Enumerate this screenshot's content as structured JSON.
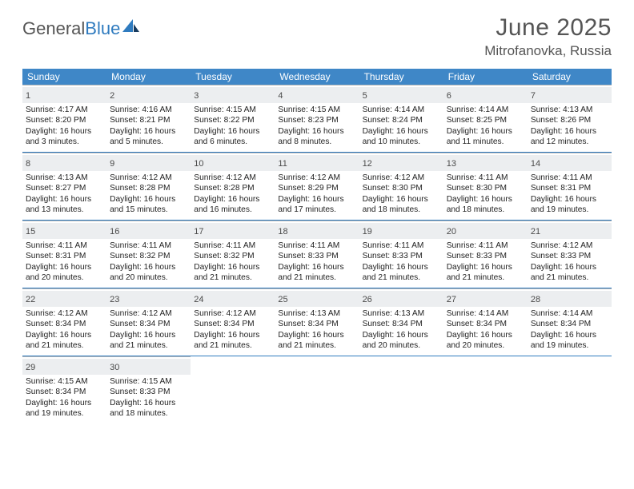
{
  "brand": {
    "name_gray": "General",
    "name_blue": "Blue"
  },
  "title": "June 2025",
  "location": "Mitrofanovka, Russia",
  "colors": {
    "header_bg": "#3f87c7",
    "divider": "#2f7bbf",
    "daynum_bg": "#eceef0",
    "cell_border": "#b9b9b9",
    "text_gray": "#555555"
  },
  "dow": [
    "Sunday",
    "Monday",
    "Tuesday",
    "Wednesday",
    "Thursday",
    "Friday",
    "Saturday"
  ],
  "weeks": [
    [
      {
        "day": "1",
        "sunrise": "Sunrise: 4:17 AM",
        "sunset": "Sunset: 8:20 PM",
        "d1": "Daylight: 16 hours",
        "d2": "and 3 minutes."
      },
      {
        "day": "2",
        "sunrise": "Sunrise: 4:16 AM",
        "sunset": "Sunset: 8:21 PM",
        "d1": "Daylight: 16 hours",
        "d2": "and 5 minutes."
      },
      {
        "day": "3",
        "sunrise": "Sunrise: 4:15 AM",
        "sunset": "Sunset: 8:22 PM",
        "d1": "Daylight: 16 hours",
        "d2": "and 6 minutes."
      },
      {
        "day": "4",
        "sunrise": "Sunrise: 4:15 AM",
        "sunset": "Sunset: 8:23 PM",
        "d1": "Daylight: 16 hours",
        "d2": "and 8 minutes."
      },
      {
        "day": "5",
        "sunrise": "Sunrise: 4:14 AM",
        "sunset": "Sunset: 8:24 PM",
        "d1": "Daylight: 16 hours",
        "d2": "and 10 minutes."
      },
      {
        "day": "6",
        "sunrise": "Sunrise: 4:14 AM",
        "sunset": "Sunset: 8:25 PM",
        "d1": "Daylight: 16 hours",
        "d2": "and 11 minutes."
      },
      {
        "day": "7",
        "sunrise": "Sunrise: 4:13 AM",
        "sunset": "Sunset: 8:26 PM",
        "d1": "Daylight: 16 hours",
        "d2": "and 12 minutes."
      }
    ],
    [
      {
        "day": "8",
        "sunrise": "Sunrise: 4:13 AM",
        "sunset": "Sunset: 8:27 PM",
        "d1": "Daylight: 16 hours",
        "d2": "and 13 minutes."
      },
      {
        "day": "9",
        "sunrise": "Sunrise: 4:12 AM",
        "sunset": "Sunset: 8:28 PM",
        "d1": "Daylight: 16 hours",
        "d2": "and 15 minutes."
      },
      {
        "day": "10",
        "sunrise": "Sunrise: 4:12 AM",
        "sunset": "Sunset: 8:28 PM",
        "d1": "Daylight: 16 hours",
        "d2": "and 16 minutes."
      },
      {
        "day": "11",
        "sunrise": "Sunrise: 4:12 AM",
        "sunset": "Sunset: 8:29 PM",
        "d1": "Daylight: 16 hours",
        "d2": "and 17 minutes."
      },
      {
        "day": "12",
        "sunrise": "Sunrise: 4:12 AM",
        "sunset": "Sunset: 8:30 PM",
        "d1": "Daylight: 16 hours",
        "d2": "and 18 minutes."
      },
      {
        "day": "13",
        "sunrise": "Sunrise: 4:11 AM",
        "sunset": "Sunset: 8:30 PM",
        "d1": "Daylight: 16 hours",
        "d2": "and 18 minutes."
      },
      {
        "day": "14",
        "sunrise": "Sunrise: 4:11 AM",
        "sunset": "Sunset: 8:31 PM",
        "d1": "Daylight: 16 hours",
        "d2": "and 19 minutes."
      }
    ],
    [
      {
        "day": "15",
        "sunrise": "Sunrise: 4:11 AM",
        "sunset": "Sunset: 8:31 PM",
        "d1": "Daylight: 16 hours",
        "d2": "and 20 minutes."
      },
      {
        "day": "16",
        "sunrise": "Sunrise: 4:11 AM",
        "sunset": "Sunset: 8:32 PM",
        "d1": "Daylight: 16 hours",
        "d2": "and 20 minutes."
      },
      {
        "day": "17",
        "sunrise": "Sunrise: 4:11 AM",
        "sunset": "Sunset: 8:32 PM",
        "d1": "Daylight: 16 hours",
        "d2": "and 21 minutes."
      },
      {
        "day": "18",
        "sunrise": "Sunrise: 4:11 AM",
        "sunset": "Sunset: 8:33 PM",
        "d1": "Daylight: 16 hours",
        "d2": "and 21 minutes."
      },
      {
        "day": "19",
        "sunrise": "Sunrise: 4:11 AM",
        "sunset": "Sunset: 8:33 PM",
        "d1": "Daylight: 16 hours",
        "d2": "and 21 minutes."
      },
      {
        "day": "20",
        "sunrise": "Sunrise: 4:11 AM",
        "sunset": "Sunset: 8:33 PM",
        "d1": "Daylight: 16 hours",
        "d2": "and 21 minutes."
      },
      {
        "day": "21",
        "sunrise": "Sunrise: 4:12 AM",
        "sunset": "Sunset: 8:33 PM",
        "d1": "Daylight: 16 hours",
        "d2": "and 21 minutes."
      }
    ],
    [
      {
        "day": "22",
        "sunrise": "Sunrise: 4:12 AM",
        "sunset": "Sunset: 8:34 PM",
        "d1": "Daylight: 16 hours",
        "d2": "and 21 minutes."
      },
      {
        "day": "23",
        "sunrise": "Sunrise: 4:12 AM",
        "sunset": "Sunset: 8:34 PM",
        "d1": "Daylight: 16 hours",
        "d2": "and 21 minutes."
      },
      {
        "day": "24",
        "sunrise": "Sunrise: 4:12 AM",
        "sunset": "Sunset: 8:34 PM",
        "d1": "Daylight: 16 hours",
        "d2": "and 21 minutes."
      },
      {
        "day": "25",
        "sunrise": "Sunrise: 4:13 AM",
        "sunset": "Sunset: 8:34 PM",
        "d1": "Daylight: 16 hours",
        "d2": "and 21 minutes."
      },
      {
        "day": "26",
        "sunrise": "Sunrise: 4:13 AM",
        "sunset": "Sunset: 8:34 PM",
        "d1": "Daylight: 16 hours",
        "d2": "and 20 minutes."
      },
      {
        "day": "27",
        "sunrise": "Sunrise: 4:14 AM",
        "sunset": "Sunset: 8:34 PM",
        "d1": "Daylight: 16 hours",
        "d2": "and 20 minutes."
      },
      {
        "day": "28",
        "sunrise": "Sunrise: 4:14 AM",
        "sunset": "Sunset: 8:34 PM",
        "d1": "Daylight: 16 hours",
        "d2": "and 19 minutes."
      }
    ],
    [
      {
        "day": "29",
        "sunrise": "Sunrise: 4:15 AM",
        "sunset": "Sunset: 8:34 PM",
        "d1": "Daylight: 16 hours",
        "d2": "and 19 minutes."
      },
      {
        "day": "30",
        "sunrise": "Sunrise: 4:15 AM",
        "sunset": "Sunset: 8:33 PM",
        "d1": "Daylight: 16 hours",
        "d2": "and 18 minutes."
      },
      null,
      null,
      null,
      null,
      null
    ]
  ]
}
